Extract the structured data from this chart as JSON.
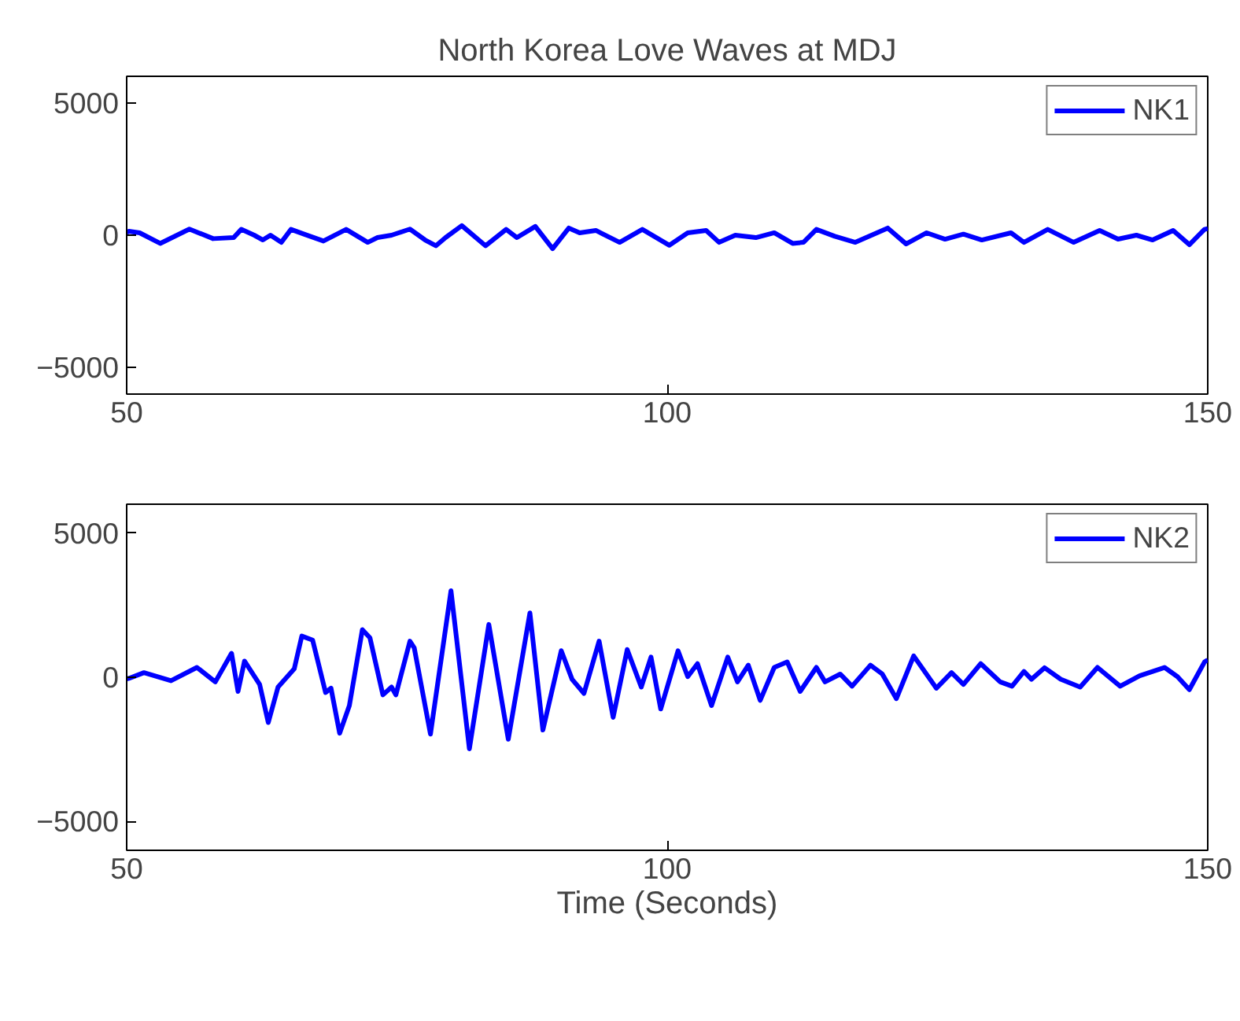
{
  "chart_data": [
    {
      "type": "line",
      "title": "North Korea Love Waves at MDJ",
      "xlim": [
        50,
        150
      ],
      "ylim": [
        -6000,
        6000
      ],
      "xticks": [
        50,
        100,
        150
      ],
      "yticks": [
        -5000,
        0,
        5000
      ],
      "grid": false,
      "legend": "top right",
      "marker": "none",
      "line_style": "solid",
      "series": [
        {
          "name": "NK1",
          "color": "#0000ff",
          "x": [
            50,
            50.2,
            51.2,
            53.1,
            55.8,
            58.0,
            59.9,
            60.6,
            61.8,
            62.6,
            63.3,
            64.3,
            65.2,
            66.4,
            68.2,
            70.3,
            72.3,
            73.2,
            74.5,
            76.2,
            77.6,
            78.6,
            79.5,
            81.0,
            83.2,
            85.1,
            86.1,
            87.8,
            89.4,
            90.9,
            91.9,
            93.4,
            95.6,
            97.7,
            100.2,
            101.9,
            103.6,
            104.8,
            106.3,
            108.2,
            109.9,
            111.6,
            112.6,
            113.8,
            115.5,
            117.4,
            120.4,
            122.1,
            124.0,
            125.7,
            127.4,
            129.1,
            131.8,
            133.0,
            135.2,
            137.6,
            140.0,
            141.7,
            143.4,
            144.9,
            146.8,
            148.3,
            149.7,
            150
          ],
          "values": [
            100,
            150,
            90,
            -310,
            230,
            -130,
            -90,
            220,
            0,
            -180,
            0,
            -270,
            220,
            40,
            -220,
            220,
            -270,
            -90,
            0,
            230,
            -180,
            -400,
            -90,
            360,
            -400,
            220,
            -90,
            330,
            -510,
            270,
            90,
            180,
            -270,
            220,
            -380,
            90,
            180,
            -270,
            0,
            -90,
            90,
            -310,
            -270,
            220,
            -40,
            -270,
            270,
            -330,
            90,
            -150,
            40,
            -180,
            90,
            -270,
            220,
            -270,
            180,
            -150,
            0,
            -180,
            180,
            -360,
            220,
            250
          ]
        }
      ]
    },
    {
      "type": "line",
      "xlabel": "Time (Seconds)",
      "xlim": [
        50,
        150
      ],
      "ylim": [
        -6000,
        6000
      ],
      "xticks": [
        50,
        100,
        150
      ],
      "yticks": [
        -5000,
        0,
        5000
      ],
      "grid": false,
      "legend": "top right",
      "marker": "none",
      "line_style": "solid",
      "series": [
        {
          "name": "NK2",
          "color": "#0000ff",
          "x": [
            50,
            50.2,
            51.6,
            54.1,
            56.5,
            58.2,
            59.7,
            60.3,
            60.9,
            62.3,
            63.1,
            64.0,
            65.5,
            66.2,
            67.2,
            68.4,
            68.9,
            69.7,
            70.6,
            71.8,
            72.5,
            73.7,
            74.5,
            74.9,
            76.2,
            76.6,
            78.1,
            80.0,
            81.7,
            83.5,
            85.3,
            87.3,
            88.5,
            90.2,
            91.2,
            92.3,
            93.7,
            95.0,
            96.3,
            97.6,
            98.5,
            99.4,
            101.0,
            101.9,
            102.8,
            104.1,
            105.6,
            106.5,
            107.5,
            108.6,
            109.9,
            111.1,
            112.3,
            113.8,
            114.6,
            116.0,
            117.1,
            118.8,
            119.9,
            121.2,
            122.8,
            124.9,
            126.3,
            127.4,
            129.0,
            130.8,
            131.9,
            133.0,
            133.7,
            134.9,
            136.4,
            138.2,
            139.8,
            141.9,
            143.7,
            146.0,
            147.2,
            148.3,
            149.7,
            150
          ],
          "values": [
            -60,
            -40,
            160,
            -120,
            340,
            -160,
            830,
            -490,
            560,
            -250,
            -1570,
            -340,
            290,
            1430,
            1290,
            -530,
            -380,
            -1940,
            -980,
            1650,
            1370,
            -610,
            -340,
            -610,
            1250,
            1020,
            -1970,
            3000,
            -2480,
            1830,
            -2150,
            2230,
            -1830,
            920,
            -70,
            -560,
            1250,
            -1390,
            960,
            -340,
            700,
            -1100,
            920,
            20,
            470,
            -980,
            700,
            -160,
            420,
            -800,
            340,
            530,
            -490,
            340,
            -160,
            110,
            -310,
            420,
            110,
            -740,
            740,
            -380,
            160,
            -250,
            470,
            -160,
            -310,
            200,
            -70,
            330,
            -70,
            -340,
            340,
            -310,
            50,
            340,
            20,
            -430,
            530,
            600
          ]
        }
      ]
    }
  ]
}
